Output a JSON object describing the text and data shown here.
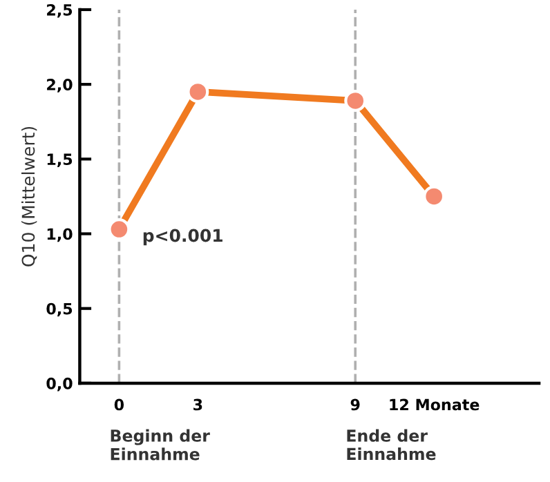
{
  "chart_data": {
    "type": "line",
    "ylabel": "Q10 (Mittelwert)",
    "x": [
      0,
      3,
      9,
      12
    ],
    "series": [
      {
        "color": "#f07a20",
        "values": [
          1.03,
          1.95,
          1.89,
          1.25
        ]
      }
    ],
    "marker": "circle",
    "line_style": "solid",
    "grid": false,
    "legend": false,
    "xlim": [
      -1.5,
      16
    ],
    "xticks": [
      0,
      3,
      9,
      {
        "value": 12,
        "label": "12 Monate"
      }
    ],
    "ylim": [
      0,
      2.5
    ],
    "yticks": [
      {
        "value": 0,
        "label": "0,0"
      },
      {
        "value": 0.5,
        "label": "0,5"
      },
      {
        "value": 1,
        "label": "1,0"
      },
      {
        "value": 1.5,
        "label": "1,5"
      },
      {
        "value": 2,
        "label": "2,0"
      },
      {
        "value": 2.5,
        "label": "2,5"
      }
    ],
    "ref_lines": [
      {
        "axis": "x",
        "value": 0,
        "label": "Beginn der\nEinnahme",
        "color": "#b0b0b0",
        "line_style": "dashed"
      },
      {
        "axis": "x",
        "value": 9,
        "label": "Ende der\nEinnahme",
        "color": "#b0b0b0",
        "line_style": "dashed"
      }
    ],
    "annotations": [
      {
        "text": "p<0.001",
        "x": 0,
        "y": 1.03
      }
    ]
  }
}
